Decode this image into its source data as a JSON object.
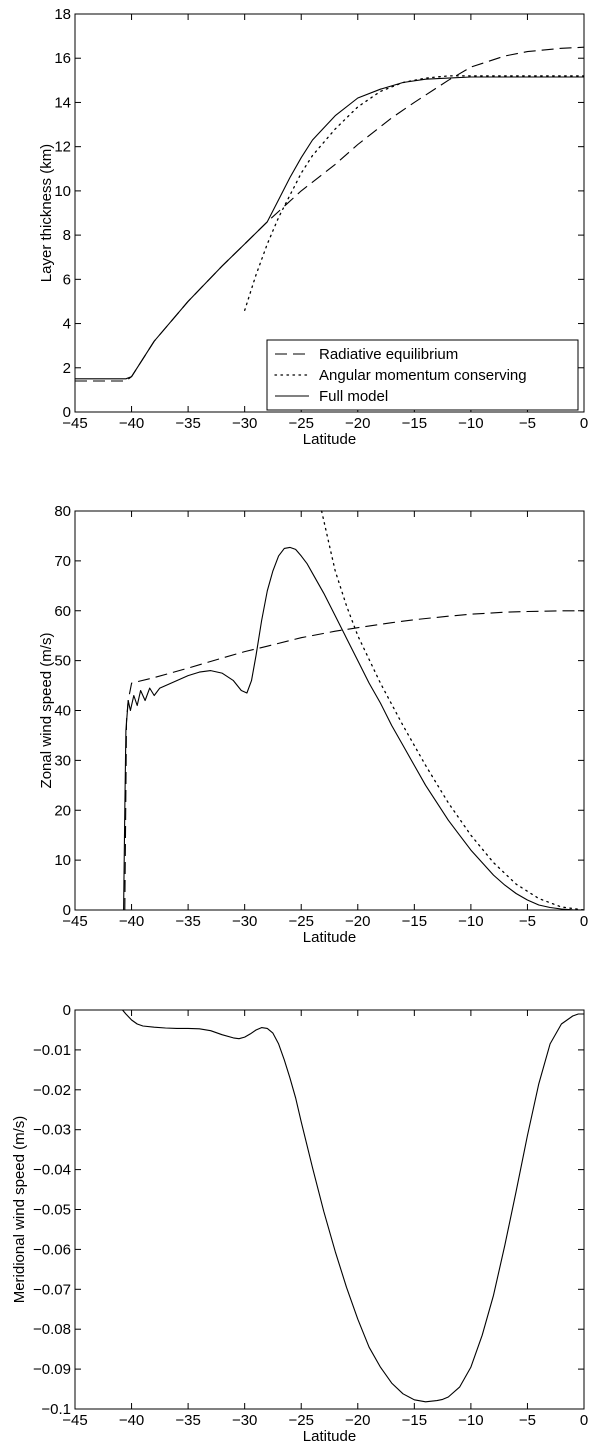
{
  "chart_data": [
    {
      "type": "line",
      "xlabel": "Latitude",
      "ylabel": "Layer thickness (km)",
      "xlim": [
        -45,
        0
      ],
      "ylim": [
        0,
        18
      ],
      "xticks": [
        -45,
        -40,
        -35,
        -30,
        -25,
        -20,
        -15,
        -10,
        -5,
        0
      ],
      "yticks": [
        0,
        2,
        4,
        6,
        8,
        10,
        12,
        14,
        16,
        18
      ],
      "grid": false,
      "legend_position": "bottom-right",
      "series": [
        {
          "name": "Radiative equilibrium",
          "style": "dashed",
          "x": [
            -45,
            -40.5,
            -40,
            -38,
            -35,
            -32,
            -30,
            -28,
            -25,
            -22,
            -20,
            -17,
            -15,
            -12,
            -10,
            -7,
            -5,
            -2,
            0
          ],
          "y": [
            1.4,
            1.4,
            1.6,
            3.2,
            5.0,
            6.6,
            7.6,
            8.6,
            10.0,
            11.2,
            12.1,
            13.3,
            14.0,
            15.0,
            15.6,
            16.1,
            16.3,
            16.45,
            16.5
          ]
        },
        {
          "name": "Angular momentum conserving",
          "style": "dotted",
          "x": [
            -30,
            -29,
            -28,
            -27,
            -26,
            -25,
            -24,
            -22,
            -20,
            -18,
            -16,
            -14,
            -12,
            -10,
            -8,
            -5,
            0
          ],
          "y": [
            4.6,
            6.2,
            7.6,
            8.8,
            9.8,
            10.8,
            11.6,
            12.8,
            13.8,
            14.5,
            14.9,
            15.1,
            15.2,
            15.2,
            15.2,
            15.2,
            15.2
          ]
        },
        {
          "name": "Full model",
          "style": "solid",
          "x": [
            -45,
            -40.5,
            -40,
            -38,
            -35,
            -32,
            -30,
            -28,
            -27,
            -26,
            -25,
            -24,
            -22,
            -20,
            -18,
            -16,
            -14,
            -12,
            -10,
            -8,
            -5,
            0
          ],
          "y": [
            1.5,
            1.5,
            1.6,
            3.2,
            5.0,
            6.6,
            7.6,
            8.6,
            9.6,
            10.6,
            11.5,
            12.3,
            13.4,
            14.2,
            14.6,
            14.9,
            15.05,
            15.1,
            15.15,
            15.15,
            15.15,
            15.15
          ]
        }
      ]
    },
    {
      "type": "line",
      "xlabel": "Latitude",
      "ylabel": "Zonal wind speed (m/s)",
      "xlim": [
        -45,
        0
      ],
      "ylim": [
        0,
        80
      ],
      "xticks": [
        -45,
        -40,
        -35,
        -30,
        -25,
        -20,
        -15,
        -10,
        -5,
        0
      ],
      "yticks": [
        0,
        10,
        20,
        30,
        40,
        50,
        60,
        70,
        80
      ],
      "grid": false,
      "series": [
        {
          "name": "",
          "style": "dashed",
          "x": [
            -40.6,
            -40.45,
            -40.3,
            -40.0,
            -38,
            -35,
            -32,
            -30,
            -28,
            -25,
            -22,
            -20,
            -17,
            -15,
            -12,
            -10,
            -7,
            -5,
            -2,
            0
          ],
          "y": [
            0,
            38,
            42,
            45.5,
            46.6,
            48.5,
            50.5,
            51.8,
            52.9,
            54.6,
            55.9,
            56.6,
            57.6,
            58.2,
            58.9,
            59.3,
            59.7,
            59.85,
            60,
            60
          ]
        },
        {
          "name": "",
          "style": "dotted",
          "x": [
            -23.2,
            -22.5,
            -22,
            -21,
            -20,
            -18,
            -16,
            -14,
            -12,
            -10,
            -8,
            -6,
            -4,
            -2,
            0
          ],
          "y": [
            80,
            73,
            68,
            61,
            55,
            45.5,
            37,
            29,
            21.5,
            15,
            9.5,
            5.2,
            2.3,
            0.6,
            0
          ]
        },
        {
          "name": "",
          "style": "solid",
          "x": [
            -40.7,
            -40.6,
            -40.5,
            -40.3,
            -40.1,
            -39.8,
            -39.5,
            -39.2,
            -38.8,
            -38.4,
            -38,
            -37.5,
            -37,
            -36,
            -35,
            -34,
            -33,
            -32,
            -31,
            -30.3,
            -29.8,
            -29.4,
            -29,
            -28.5,
            -28,
            -27.5,
            -27,
            -26.5,
            -26,
            -25.5,
            -25,
            -24.5,
            -24,
            -23,
            -22,
            -21,
            -20,
            -19,
            -18,
            -17,
            -16,
            -15,
            -14,
            -13,
            -12,
            -11,
            -10,
            -9,
            -8,
            -7,
            -6,
            -5,
            -4,
            -3,
            -2,
            -1,
            0
          ],
          "y": [
            0,
            20,
            36,
            42,
            40,
            43,
            41,
            44,
            42,
            44.5,
            43,
            44.5,
            45,
            46,
            47,
            47.7,
            48,
            47.5,
            46,
            44,
            43.5,
            46,
            51,
            58,
            64,
            68,
            71,
            72.5,
            72.7,
            72.3,
            71,
            69.5,
            67.5,
            63.5,
            59,
            54.5,
            50,
            45.5,
            41.5,
            37,
            33,
            29,
            25,
            21.5,
            18,
            15,
            12,
            9.5,
            7,
            5,
            3.3,
            2,
            1,
            0.5,
            0.2,
            0.05,
            0
          ]
        }
      ]
    },
    {
      "type": "line",
      "xlabel": "Latitude",
      "ylabel": "Meridional wind speed (m/s)",
      "xlim": [
        -45,
        0
      ],
      "ylim": [
        -0.1,
        0
      ],
      "xticks": [
        -45,
        -40,
        -35,
        -30,
        -25,
        -20,
        -15,
        -10,
        -5,
        0
      ],
      "yticks": [
        -0.1,
        -0.09,
        -0.08,
        -0.07,
        -0.06,
        -0.05,
        -0.04,
        -0.03,
        -0.02,
        -0.01,
        0
      ],
      "grid": false,
      "series": [
        {
          "name": "",
          "style": "solid",
          "x": [
            -40.8,
            -40.5,
            -40,
            -39.5,
            -39,
            -38,
            -37,
            -36,
            -35,
            -34,
            -33,
            -32,
            -31,
            -30.5,
            -30,
            -29.5,
            -29,
            -28.5,
            -28,
            -27.5,
            -27,
            -26.5,
            -26,
            -25.5,
            -25,
            -24,
            -23,
            -22,
            -21,
            -20,
            -19,
            -18,
            -17,
            -16,
            -15,
            -14,
            -13,
            -12.5,
            -12,
            -11,
            -10,
            -9,
            -8,
            -7,
            -6,
            -5,
            -4,
            -3,
            -2,
            -1,
            -0.5,
            0
          ],
          "y": [
            0,
            -0.001,
            -0.0025,
            -0.0035,
            -0.004,
            -0.0043,
            -0.0045,
            -0.0046,
            -0.0046,
            -0.0047,
            -0.0052,
            -0.0062,
            -0.007,
            -0.0072,
            -0.0068,
            -0.006,
            -0.005,
            -0.0044,
            -0.0046,
            -0.0058,
            -0.0085,
            -0.0125,
            -0.017,
            -0.022,
            -0.028,
            -0.0395,
            -0.0505,
            -0.0605,
            -0.0695,
            -0.0775,
            -0.0845,
            -0.0895,
            -0.0935,
            -0.0962,
            -0.0977,
            -0.0982,
            -0.0979,
            -0.0976,
            -0.097,
            -0.0945,
            -0.0895,
            -0.0815,
            -0.0715,
            -0.059,
            -0.0455,
            -0.0315,
            -0.0185,
            -0.0085,
            -0.0035,
            -0.0015,
            -0.001,
            -0.001
          ]
        }
      ]
    }
  ]
}
